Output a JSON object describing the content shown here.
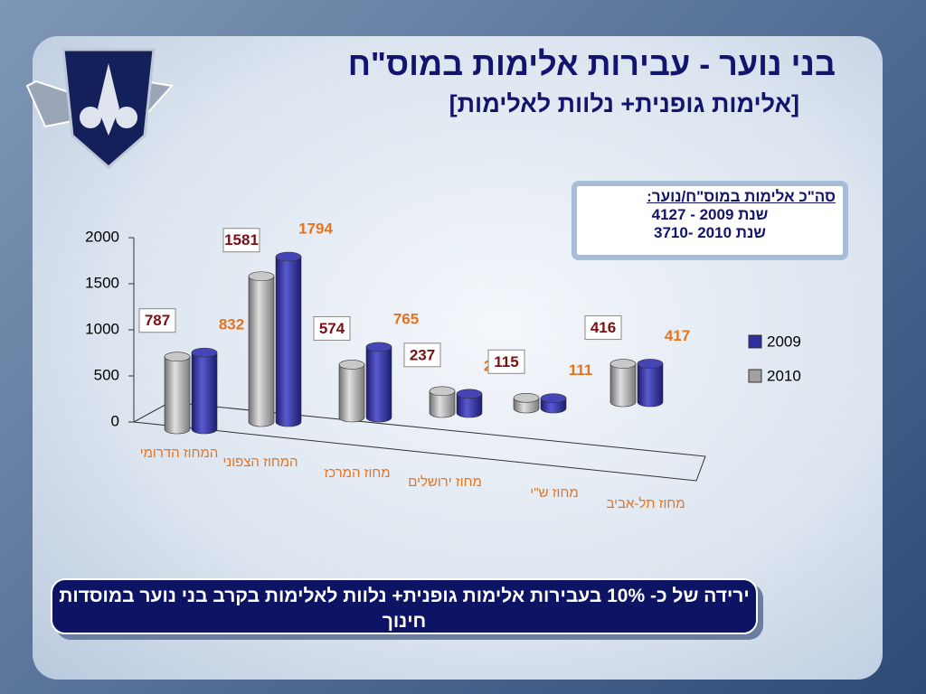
{
  "chart_data": {
    "type": "bar",
    "title": "בני נוער - עבירות אלימות במוס\"ח",
    "subtitle": "[אלימות גופנית+ נלוות לאלימות]",
    "categories": [
      "המחוז הדרומי",
      "המחוז הצפוני",
      "מחוז המרכז",
      "מחוז ירושלים",
      "מחוז ש\"י",
      "מחוז תל-אביב"
    ],
    "series": [
      {
        "name": "2009",
        "color": "#2e2e9e",
        "values": [
          832,
          1794,
          765,
          208,
          111,
          417
        ]
      },
      {
        "name": "2010",
        "color": "#a0a0a0",
        "values": [
          787,
          1581,
          574,
          237,
          115,
          416
        ]
      }
    ],
    "ylim": [
      0,
      2000
    ],
    "yticks": [
      0,
      500,
      1000,
      1500,
      2000
    ],
    "legend": "right",
    "summary": {
      "title": "סה\"כ אלימות במוס\"ח/נוער:",
      "lines": [
        "שנת 2009 - 4127",
        "שנת 2010 -3710"
      ]
    },
    "conclusion": "ירידה של כ- 10% בעבירות אלימות גופנית+ נלוות לאלימות בקרב בני נוער במוסדות חינוך"
  }
}
